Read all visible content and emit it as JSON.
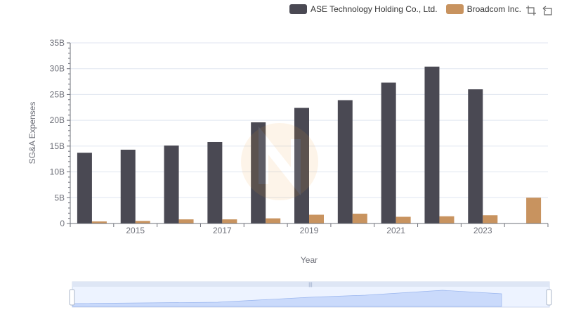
{
  "chart_data": {
    "type": "bar",
    "categories": [
      "2014",
      "2015",
      "2016",
      "2017",
      "2018",
      "2019",
      "2020",
      "2021",
      "2022",
      "2023",
      "2024"
    ],
    "series": [
      {
        "name": "ASE Technology Holding Co., Ltd.",
        "color": "#4a4953",
        "values": [
          13.7,
          14.3,
          15.1,
          15.8,
          19.6,
          22.4,
          23.9,
          27.3,
          30.4,
          26.0,
          null
        ]
      },
      {
        "name": "Broadcom Inc.",
        "color": "#c8935f",
        "values": [
          0.4,
          0.5,
          0.8,
          0.8,
          1.0,
          1.7,
          1.9,
          1.3,
          1.4,
          1.6,
          5.0
        ]
      }
    ],
    "xlabel": "Year",
    "ylabel": "SG&A Expenses",
    "ylim": [
      0,
      35
    ],
    "yticks": [
      "0",
      "5B",
      "10B",
      "15B",
      "20B",
      "25B",
      "30B",
      "35B"
    ],
    "xtick_labels": [
      "2015",
      "2017",
      "2019",
      "2021",
      "2023"
    ],
    "grid": true,
    "legend_position": "top-right"
  },
  "toolbar": {
    "icons": [
      "zoom-icon",
      "restore-icon"
    ]
  },
  "data_zoom": {
    "range_start_percent": 0,
    "range_end_percent": 100
  }
}
